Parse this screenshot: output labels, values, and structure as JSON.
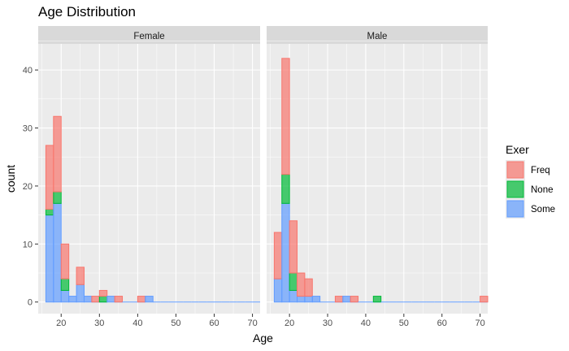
{
  "chart_data": {
    "type": "bar",
    "subtype": "stacked-histogram-faceted",
    "title": "Age Distribution",
    "xlabel": "Age",
    "ylabel": "count",
    "xlim": [
      14,
      72
    ],
    "ylim": [
      -2,
      44.5
    ],
    "x_ticks": [
      20,
      30,
      40,
      50,
      60,
      70
    ],
    "y_ticks": [
      0,
      10,
      20,
      30,
      40
    ],
    "bin_width": 2,
    "stack_order": [
      "Some",
      "None",
      "Freq"
    ],
    "legend": {
      "title": "Exer",
      "position": "right",
      "entries": [
        {
          "name": "Freq",
          "fill": "#F8766D"
        },
        {
          "name": "None",
          "fill": "#00BA38"
        },
        {
          "name": "Some",
          "fill": "#619CFF"
        }
      ]
    },
    "x_bins": [
      17,
      19,
      21,
      23,
      25,
      27,
      29,
      31,
      33,
      35,
      37,
      39,
      41,
      43,
      45,
      47,
      49,
      51,
      53,
      55,
      57,
      59,
      61,
      63,
      65,
      67,
      69,
      71
    ],
    "facets": [
      {
        "label": "Female",
        "series": [
          {
            "name": "Freq",
            "values": [
              11,
              13,
              6,
              0,
              3,
              0,
              1,
              1,
              0,
              1,
              0,
              0,
              1,
              0,
              0,
              0,
              0,
              0,
              0,
              0,
              0,
              0,
              0,
              0,
              0,
              0,
              0,
              0
            ]
          },
          {
            "name": "None",
            "values": [
              1,
              2,
              2,
              0,
              0,
              0,
              0,
              1,
              0,
              0,
              0,
              0,
              0,
              0,
              0,
              0,
              0,
              0,
              0,
              0,
              0,
              0,
              0,
              0,
              0,
              0,
              0,
              0
            ]
          },
          {
            "name": "Some",
            "values": [
              15,
              17,
              2,
              1,
              3,
              1,
              0,
              0,
              1,
              0,
              0,
              0,
              0,
              1,
              0,
              0,
              0,
              0,
              0,
              0,
              0,
              0,
              0,
              0,
              0,
              0,
              0,
              0
            ]
          }
        ]
      },
      {
        "label": "Male",
        "series": [
          {
            "name": "Freq",
            "values": [
              8,
              20,
              9,
              4,
              3,
              0,
              0,
              0,
              1,
              0,
              1,
              0,
              0,
              0,
              0,
              0,
              0,
              0,
              0,
              0,
              0,
              0,
              0,
              0,
              0,
              0,
              0,
              1
            ]
          },
          {
            "name": "None",
            "values": [
              0,
              5,
              3,
              0,
              0,
              0,
              0,
              0,
              0,
              0,
              0,
              0,
              0,
              1,
              0,
              0,
              0,
              0,
              0,
              0,
              0,
              0,
              0,
              0,
              0,
              0,
              0,
              0
            ]
          },
          {
            "name": "Some",
            "values": [
              4,
              17,
              2,
              1,
              1,
              1,
              0,
              0,
              0,
              1,
              0,
              0,
              0,
              0,
              0,
              0,
              0,
              0,
              0,
              0,
              0,
              0,
              0,
              0,
              0,
              0,
              0,
              0
            ]
          }
        ]
      }
    ],
    "colors": {
      "panel_background": "#EBEBEB",
      "grid_major": "#FFFFFF",
      "strip_background": "#D9D9D9",
      "freq_outline": "#F8766D",
      "none_outline": "#00BA38",
      "some_outline": "#619CFF"
    }
  }
}
